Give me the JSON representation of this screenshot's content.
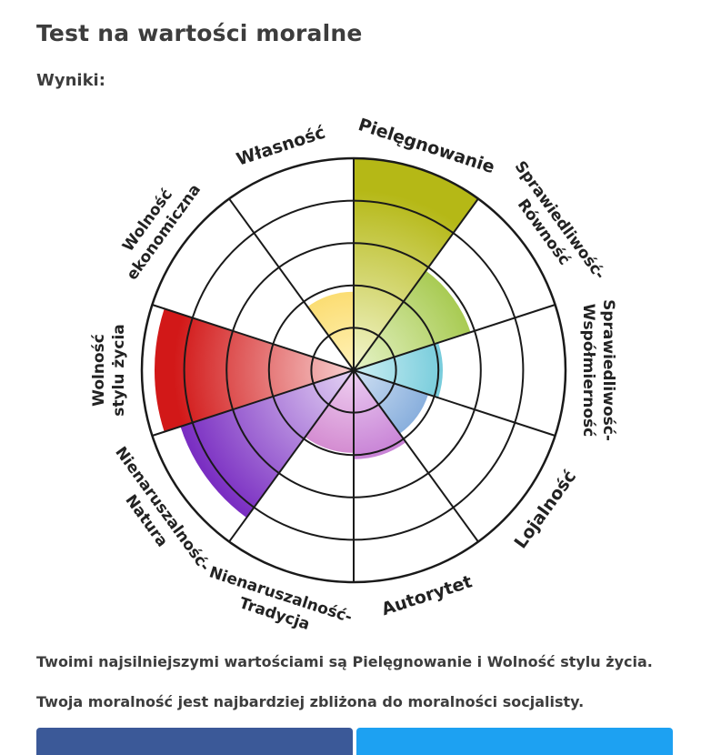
{
  "page": {
    "title": "Test na wartości moralne",
    "subtitle": "Wyniki:"
  },
  "chart_data": {
    "type": "polar-area",
    "rings": 5,
    "max": 5,
    "segments": [
      {
        "name": "Pielęgnowanie",
        "label_lines": [
          "Pielęgnowanie"
        ],
        "value": 5.0,
        "color_inner": "#f3f6cf",
        "color_outer": "#b5b816"
      },
      {
        "name": "Sprawiedliwość-Równość",
        "label_lines": [
          "Sprawiedliwość-",
          "Równość"
        ],
        "value": 2.9,
        "color_inner": "#e6f3c8",
        "color_outer": "#8cb81d"
      },
      {
        "name": "Sprawiedliwość-Współmierność",
        "label_lines": [
          "Sprawiedliwość-",
          "Współmierność"
        ],
        "value": 2.1,
        "color_inner": "#cdeff4",
        "color_outer": "#1fa8c2"
      },
      {
        "name": "Lojalność",
        "label_lines": [
          "Lojalność"
        ],
        "value": 1.85,
        "color_inner": "#cfe0f3",
        "color_outer": "#2f70c0"
      },
      {
        "name": "Autorytet",
        "label_lines": [
          "Autorytet"
        ],
        "value": 2.1,
        "color_inner": "#eccef2",
        "color_outer": "#a334b8"
      },
      {
        "name": "Nienaruszalność-Tradycja",
        "label_lines": [
          "Nienaruszalność-",
          "Tradycja"
        ],
        "value": 1.95,
        "color_inner": "#efd1f2",
        "color_outer": "#b43cab"
      },
      {
        "name": "Nienaruszalność-Natura",
        "label_lines": [
          "Nienaruszalność-",
          "Natura"
        ],
        "value": 4.3,
        "color_inner": "#e4d4f4",
        "color_outer": "#7a2ec2"
      },
      {
        "name": "Wolność stylu życia",
        "label_lines": [
          "Wolność",
          "stylu życia"
        ],
        "value": 4.7,
        "color_inner": "#f7d0d0",
        "color_outer": "#d21818"
      },
      {
        "name": "Wolność ekonomiczna",
        "label_lines": [
          "Wolność",
          "ekonomiczna"
        ],
        "value": 0.0,
        "color_inner": "#fbe7c0",
        "color_outer": "#f3a020"
      },
      {
        "name": "Własność",
        "label_lines": [
          "Własność"
        ],
        "value": 1.85,
        "color_inner": "#fff2b8",
        "color_outer": "#f6c21a"
      }
    ]
  },
  "results": {
    "strongest": "Twoimi najsilniejszymi wartościami są Pielęgnowanie i Wolność stylu życia.",
    "closest": "Twoja moralność jest najbardziej zbliżona do moralności socjalisty."
  }
}
